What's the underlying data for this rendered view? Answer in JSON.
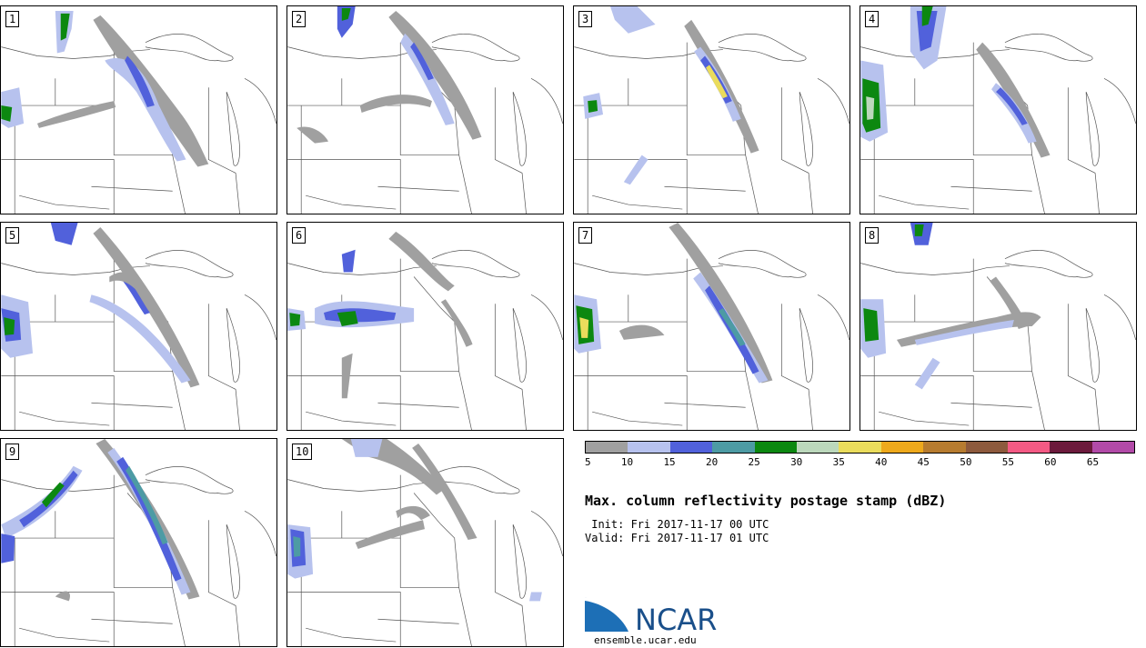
{
  "panels": [
    "1",
    "2",
    "3",
    "4",
    "5",
    "6",
    "7",
    "8",
    "9",
    "10"
  ],
  "colorbar": {
    "colors": [
      "#a0a0a0",
      "#b7c2ee",
      "#5161db",
      "#4d9ba4",
      "#0c8810",
      "#bcd8bc",
      "#eadc5c",
      "#eea91c",
      "#b77c30",
      "#8d5a3d",
      "#f45a84",
      "#6c1a3c",
      "#b24aa8"
    ],
    "ticks": [
      "5",
      "10",
      "15",
      "20",
      "25",
      "30",
      "35",
      "40",
      "45",
      "50",
      "55",
      "60",
      "65"
    ]
  },
  "title": "Max. column reflectivity postage stamp (dBZ)",
  "init": " Init: Fri 2017-11-17 00 UTC",
  "valid": "Valid: Fri 2017-11-17 01 UTC",
  "logo": {
    "text": "NCAR",
    "url": "ensemble.ucar.edu"
  }
}
